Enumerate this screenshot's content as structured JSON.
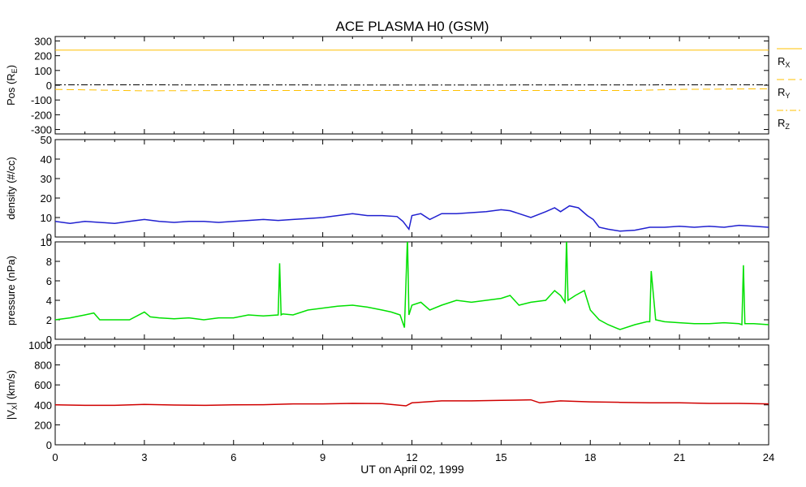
{
  "title": "ACE PLASMA H0 (GSM)",
  "xlabel": "UT on April 02, 1999",
  "x_ticks": [
    "0",
    "3",
    "6",
    "9",
    "12",
    "15",
    "18",
    "21",
    "24"
  ],
  "colors": {
    "position": "#ffc000",
    "density": "#2020d0",
    "pressure": "#00e000",
    "velocity": "#d00000"
  },
  "chart_data": [
    {
      "type": "line",
      "panel": "position",
      "ylabel_main": "Pos (R",
      "ylabel_sub": "E",
      "ylabel_end": ")",
      "ylim": [
        -330,
        330
      ],
      "y_ticks": [
        300,
        200,
        100,
        0,
        -100,
        -200,
        -300
      ],
      "xlim": [
        0,
        24
      ],
      "series": [
        {
          "name": "R",
          "sub": "X",
          "dash": "solid",
          "x": [
            0,
            24
          ],
          "values": [
            238,
            238
          ]
        },
        {
          "name": "R",
          "sub": "Y",
          "dash": "dashed",
          "x": [
            0,
            3,
            6,
            9,
            12,
            15,
            18,
            19.5,
            21,
            24
          ],
          "values": [
            -28,
            -38,
            -36,
            -36,
            -36,
            -36,
            -36,
            -36,
            -28,
            -24
          ]
        },
        {
          "name": "R",
          "sub": "Z",
          "dash": "dashdot",
          "x": [
            0,
            6,
            12,
            18,
            24
          ],
          "values": [
            3,
            2,
            1,
            2,
            3
          ]
        }
      ]
    },
    {
      "type": "line",
      "panel": "density",
      "ylabel": "density (#/cc)",
      "ylim": [
        0,
        50
      ],
      "y_ticks": [
        50,
        40,
        30,
        20,
        10,
        0
      ],
      "xlim": [
        0,
        24
      ],
      "series": [
        {
          "x": [
            0,
            0.5,
            1,
            1.5,
            2,
            2.5,
            3,
            3.5,
            4,
            4.5,
            5,
            5.5,
            6,
            6.5,
            7,
            7.5,
            8,
            8.5,
            9,
            9.5,
            10,
            10.5,
            11,
            11.5,
            11.7,
            11.9,
            12,
            12.3,
            12.6,
            13,
            13.5,
            14,
            14.5,
            15,
            15.3,
            15.6,
            16,
            16.5,
            16.8,
            17,
            17.3,
            17.6,
            17.9,
            18.1,
            18.3,
            18.6,
            19,
            19.5,
            20,
            20.5,
            21,
            21.5,
            22,
            22.5,
            23,
            23.5,
            24
          ],
          "values": [
            8,
            7,
            8,
            7.5,
            7,
            8,
            9,
            8,
            7.5,
            8,
            8,
            7.5,
            8,
            8.5,
            9,
            8.5,
            9,
            9.5,
            10,
            11,
            12,
            11,
            11,
            10.5,
            8,
            4,
            11,
            12,
            9,
            12,
            12,
            12.5,
            13,
            14,
            13.5,
            12,
            10,
            13,
            15,
            13,
            16,
            15,
            11,
            9,
            5,
            4,
            3,
            3.5,
            5,
            5,
            5.5,
            5,
            5.5,
            5,
            6,
            5.5,
            5
          ]
        }
      ]
    },
    {
      "type": "line",
      "panel": "pressure",
      "ylabel": "pressure (nPa)",
      "ylim": [
        0,
        10
      ],
      "y_ticks": [
        10,
        8,
        6,
        4,
        2,
        0
      ],
      "xlim": [
        0,
        24
      ],
      "series": [
        {
          "x": [
            0,
            0.5,
            1,
            1.3,
            1.5,
            2,
            2.5,
            3,
            3.2,
            3.5,
            4,
            4.5,
            5,
            5.5,
            6,
            6.5,
            7,
            7.5,
            7.55,
            7.6,
            7.65,
            8,
            8.5,
            9,
            9.5,
            10,
            10.5,
            11,
            11.3,
            11.6,
            11.75,
            11.85,
            11.9,
            12,
            12.3,
            12.6,
            13,
            13.5,
            14,
            14.5,
            15,
            15.3,
            15.6,
            16,
            16.5,
            16.8,
            17,
            17.15,
            17.2,
            17.25,
            17.5,
            17.8,
            18,
            18.3,
            18.6,
            19,
            19.5,
            19.9,
            20,
            20.05,
            20.2,
            20.5,
            21,
            21.5,
            22,
            22.5,
            23,
            23.1,
            23.15,
            23.2,
            23.5,
            24
          ],
          "values": [
            2.0,
            2.2,
            2.5,
            2.7,
            2.0,
            2.0,
            2.0,
            2.8,
            2.3,
            2.2,
            2.1,
            2.2,
            2.0,
            2.2,
            2.2,
            2.5,
            2.4,
            2.5,
            7.8,
            2.5,
            2.6,
            2.5,
            3.0,
            3.2,
            3.4,
            3.5,
            3.3,
            3.0,
            2.8,
            2.5,
            1.2,
            10.5,
            2.5,
            3.5,
            3.8,
            3.0,
            3.5,
            4.0,
            3.8,
            4.0,
            4.2,
            4.5,
            3.5,
            3.8,
            4.0,
            5.0,
            4.5,
            3.8,
            10.3,
            4.0,
            4.5,
            5.0,
            3.0,
            2.0,
            1.5,
            1.0,
            1.5,
            1.8,
            1.8,
            7.0,
            2.0,
            1.8,
            1.7,
            1.6,
            1.6,
            1.7,
            1.6,
            1.5,
            7.6,
            1.6,
            1.6,
            1.5
          ]
        }
      ]
    },
    {
      "type": "line",
      "panel": "velocity",
      "ylabel_main": "|V",
      "ylabel_sub": "X",
      "ylabel_end": "| (km/s)",
      "ylim": [
        0,
        1000
      ],
      "y_ticks": [
        1000,
        800,
        600,
        400,
        200,
        0
      ],
      "xlim": [
        0,
        24
      ],
      "series": [
        {
          "x": [
            0,
            1,
            2,
            3,
            4,
            5,
            6,
            7,
            8,
            9,
            10,
            11,
            11.8,
            12,
            13,
            14,
            15,
            16,
            16.3,
            17,
            18,
            19,
            20,
            21,
            22,
            23,
            24
          ],
          "values": [
            400,
            395,
            395,
            405,
            398,
            395,
            400,
            402,
            410,
            410,
            415,
            412,
            390,
            420,
            440,
            440,
            445,
            450,
            420,
            440,
            430,
            425,
            420,
            420,
            415,
            415,
            410
          ]
        }
      ]
    }
  ]
}
